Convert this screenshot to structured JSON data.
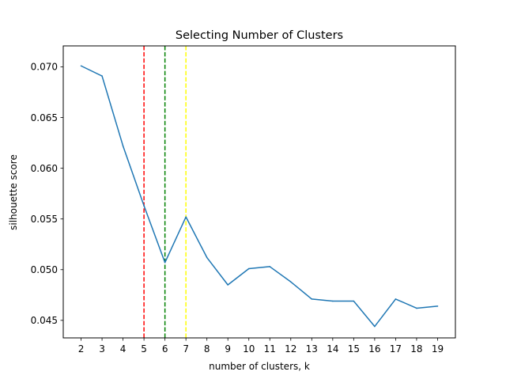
{
  "chart_data": {
    "type": "line",
    "title": "Selecting Number of Clusters",
    "xlabel": "number of clusters, k",
    "ylabel": "silhouette score",
    "x": [
      2,
      3,
      4,
      5,
      6,
      7,
      8,
      9,
      10,
      11,
      12,
      13,
      14,
      15,
      16,
      17,
      18,
      19
    ],
    "series": [
      {
        "values": [
          0.0701,
          0.0691,
          0.0622,
          0.0563,
          0.0507,
          0.0552,
          0.0512,
          0.0485,
          0.0501,
          0.0503,
          0.0488,
          0.0471,
          0.0469,
          0.0469,
          0.0444,
          0.0471,
          0.0462,
          0.0464
        ],
        "color": "#1f77b4"
      }
    ],
    "vlines": [
      {
        "x": 5,
        "color": "#ff0000",
        "style": "dashed"
      },
      {
        "x": 6,
        "color": "#008000",
        "style": "dashed"
      },
      {
        "x": 7,
        "color": "#ffff00",
        "style": "dashed"
      }
    ],
    "xlim": [
      1.15,
      19.85
    ],
    "ylim": [
      0.04327,
      0.07207
    ],
    "xticks": [
      2,
      3,
      4,
      5,
      6,
      7,
      8,
      9,
      10,
      11,
      12,
      13,
      14,
      15,
      16,
      17,
      18,
      19
    ],
    "xtick_labels": [
      "2",
      "3",
      "4",
      "5",
      "6",
      "7",
      "8",
      "9",
      "10",
      "11",
      "12",
      "13",
      "14",
      "15",
      "16",
      "17",
      "18",
      "19"
    ],
    "yticks": [
      0.045,
      0.05,
      0.055,
      0.06,
      0.065,
      0.07
    ],
    "ytick_labels": [
      "0.045",
      "0.050",
      "0.055",
      "0.060",
      "0.065",
      "0.070"
    ],
    "grid": false,
    "legend": "none"
  }
}
